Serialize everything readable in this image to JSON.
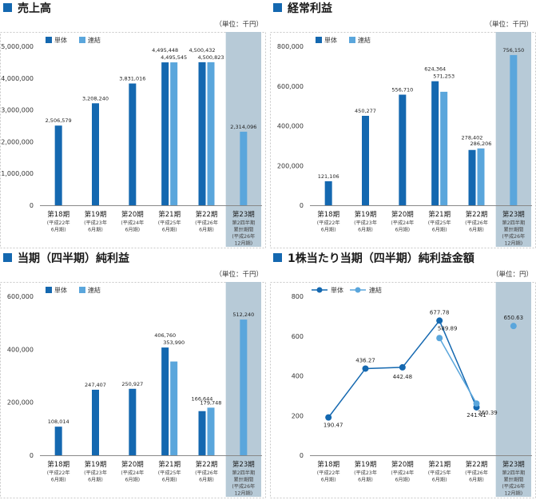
{
  "panels": [
    {
      "title": "売上高",
      "unit": "（単位：千円）",
      "legend": [
        "単体",
        "連結"
      ],
      "colors": {
        "single": "#1468b0",
        "consolidated": "#5aa6dc",
        "highlight": "#b7cad7"
      },
      "categories": [
        {
          "main": "第18期",
          "sub": [
            "(平成22年",
            "6月期)"
          ]
        },
        {
          "main": "第19期",
          "sub": [
            "(平成23年",
            "6月期)"
          ]
        },
        {
          "main": "第20期",
          "sub": [
            "(平成24年",
            "6月期)"
          ]
        },
        {
          "main": "第21期",
          "sub": [
            "(平成25年",
            "6月期)"
          ]
        },
        {
          "main": "第22期",
          "sub": [
            "(平成26年",
            "6月期)"
          ]
        },
        {
          "main": "第23期",
          "sub": [
            "第2四半期",
            "累計期間",
            "(平成26年",
            "12月期)"
          ]
        }
      ]
    },
    {
      "title": "経常利益",
      "unit": "（単位：千円）",
      "legend": [
        "単体",
        "連結"
      ],
      "colors": {
        "single": "#1468b0",
        "consolidated": "#5aa6dc",
        "highlight": "#b7cad7"
      },
      "categories": [
        {
          "main": "第18期",
          "sub": [
            "(平成22年",
            "6月期)"
          ]
        },
        {
          "main": "第19期",
          "sub": [
            "(平成23年",
            "6月期)"
          ]
        },
        {
          "main": "第20期",
          "sub": [
            "(平成24年",
            "6月期)"
          ]
        },
        {
          "main": "第21期",
          "sub": [
            "(平成25年",
            "6月期)"
          ]
        },
        {
          "main": "第22期",
          "sub": [
            "(平成26年",
            "6月期)"
          ]
        },
        {
          "main": "第23期",
          "sub": [
            "第2四半期",
            "累計期間",
            "(平成26年",
            "12月期)"
          ]
        }
      ]
    },
    {
      "title": "当期（四半期）純利益",
      "unit": "（単位：千円）",
      "legend": [
        "単体",
        "連結"
      ],
      "colors": {
        "single": "#1468b0",
        "consolidated": "#5aa6dc",
        "highlight": "#b7cad7"
      },
      "categories": [
        {
          "main": "第18期",
          "sub": [
            "(平成22年",
            "6月期)"
          ]
        },
        {
          "main": "第19期",
          "sub": [
            "(平成23年",
            "6月期)"
          ]
        },
        {
          "main": "第20期",
          "sub": [
            "(平成24年",
            "6月期)"
          ]
        },
        {
          "main": "第21期",
          "sub": [
            "(平成25年",
            "6月期)"
          ]
        },
        {
          "main": "第22期",
          "sub": [
            "(平成26年",
            "6月期)"
          ]
        },
        {
          "main": "第23期",
          "sub": [
            "第2四半期",
            "累計期間",
            "(平成26年",
            "12月期)"
          ]
        }
      ]
    },
    {
      "title": "1株当たり当期（四半期）純利益金額",
      "unit": "（単位：円）",
      "legend": [
        "単体",
        "連結"
      ],
      "colors": {
        "single": "#1468b0",
        "consolidated": "#5aa6dc",
        "highlight": "#b7cad7"
      },
      "categories": [
        {
          "main": "第18期",
          "sub": [
            "(平成22年",
            "6月期)"
          ]
        },
        {
          "main": "第19期",
          "sub": [
            "(平成23年",
            "6月期)"
          ]
        },
        {
          "main": "第20期",
          "sub": [
            "(平成24年",
            "6月期)"
          ]
        },
        {
          "main": "第21期",
          "sub": [
            "(平成25年",
            "6月期)"
          ]
        },
        {
          "main": "第22期",
          "sub": [
            "(平成26年",
            "6月期)"
          ]
        },
        {
          "main": "第23期",
          "sub": [
            "第2四半期",
            "累計期間",
            "(平成26年",
            "12月期)"
          ]
        }
      ]
    }
  ],
  "chart_data": [
    {
      "type": "bar",
      "title": "売上高",
      "ylabel": "（単位：千円）",
      "ylim": [
        0,
        5000000
      ],
      "yticks": [
        0,
        1000000,
        2000000,
        3000000,
        4000000,
        5000000
      ],
      "ytick_labels": [
        "0",
        "1,000,000",
        "2,000,000",
        "3,000,000",
        "4,000,000",
        "5,000,000"
      ],
      "grid": false,
      "legend_position": "top-left",
      "categories": [
        "第18期",
        "第19期",
        "第20期",
        "第21期",
        "第22期",
        "第23期"
      ],
      "highlight_category": "第23期",
      "series": [
        {
          "name": "単体",
          "values": [
            2506579,
            3208240,
            3831016,
            4495448,
            4500432,
            null
          ],
          "labels": [
            "2,506,579",
            "3,208,240",
            "3,831,016",
            "4,495,448",
            "4,500,432",
            ""
          ]
        },
        {
          "name": "連結",
          "values": [
            null,
            null,
            null,
            4495545,
            4500823,
            2314096
          ],
          "labels": [
            "",
            "",
            "",
            "4,495,545",
            "4,500,823",
            "2,314,096"
          ]
        }
      ]
    },
    {
      "type": "bar",
      "title": "経常利益",
      "ylabel": "（単位：千円）",
      "ylim": [
        0,
        800000
      ],
      "yticks": [
        0,
        200000,
        400000,
        600000,
        800000
      ],
      "ytick_labels": [
        "0",
        "200,000",
        "400,000",
        "600,000",
        "800,000"
      ],
      "grid": false,
      "legend_position": "top-left",
      "categories": [
        "第18期",
        "第19期",
        "第20期",
        "第21期",
        "第22期",
        "第23期"
      ],
      "highlight_category": "第23期",
      "series": [
        {
          "name": "単体",
          "values": [
            121106,
            450277,
            556710,
            624364,
            278402,
            null
          ],
          "labels": [
            "121,106",
            "450,277",
            "556,710",
            "624,364",
            "278,402",
            ""
          ]
        },
        {
          "name": "連結",
          "values": [
            null,
            null,
            null,
            571253,
            286206,
            756150
          ],
          "labels": [
            "",
            "",
            "",
            "571,253",
            "286,206",
            "756,150"
          ]
        }
      ]
    },
    {
      "type": "bar",
      "title": "当期（四半期）純利益",
      "ylabel": "（単位：千円）",
      "ylim": [
        0,
        600000
      ],
      "yticks": [
        0,
        200000,
        400000,
        600000
      ],
      "ytick_labels": [
        "0",
        "200,000",
        "400,000",
        "600,000"
      ],
      "grid": false,
      "legend_position": "top-left",
      "categories": [
        "第18期",
        "第19期",
        "第20期",
        "第21期",
        "第22期",
        "第23期"
      ],
      "highlight_category": "第23期",
      "series": [
        {
          "name": "単体",
          "values": [
            108014,
            247407,
            250927,
            406760,
            166644,
            null
          ],
          "labels": [
            "108,014",
            "247,407",
            "250,927",
            "406,760",
            "166,644",
            ""
          ]
        },
        {
          "name": "連結",
          "values": [
            null,
            null,
            null,
            353990,
            179748,
            512240
          ],
          "labels": [
            "",
            "",
            "",
            "353,990",
            "179,748",
            "512,240"
          ]
        }
      ]
    },
    {
      "type": "line",
      "title": "1株当たり当期（四半期）純利益金額",
      "ylabel": "（単位：円）",
      "ylim": [
        0,
        800
      ],
      "yticks": [
        0,
        200,
        400,
        600,
        800
      ],
      "ytick_labels": [
        "0",
        "200",
        "400",
        "600",
        "800"
      ],
      "grid": false,
      "legend_position": "top-left",
      "categories": [
        "第18期",
        "第19期",
        "第20期",
        "第21期",
        "第22期",
        "第23期"
      ],
      "highlight_category": "第23期",
      "series": [
        {
          "name": "単体",
          "values": [
            190.47,
            436.27,
            442.48,
            677.78,
            241.41,
            null
          ],
          "labels": [
            "190.47",
            "436.27",
            "442.48",
            "677.78",
            "241.41",
            ""
          ]
        },
        {
          "name": "連結",
          "values": [
            null,
            null,
            null,
            589.89,
            260.39,
            650.63
          ],
          "labels": [
            "",
            "",
            "",
            "589.89",
            "260.39",
            "650.63"
          ],
          "connected_until_index": 4
        }
      ]
    }
  ]
}
